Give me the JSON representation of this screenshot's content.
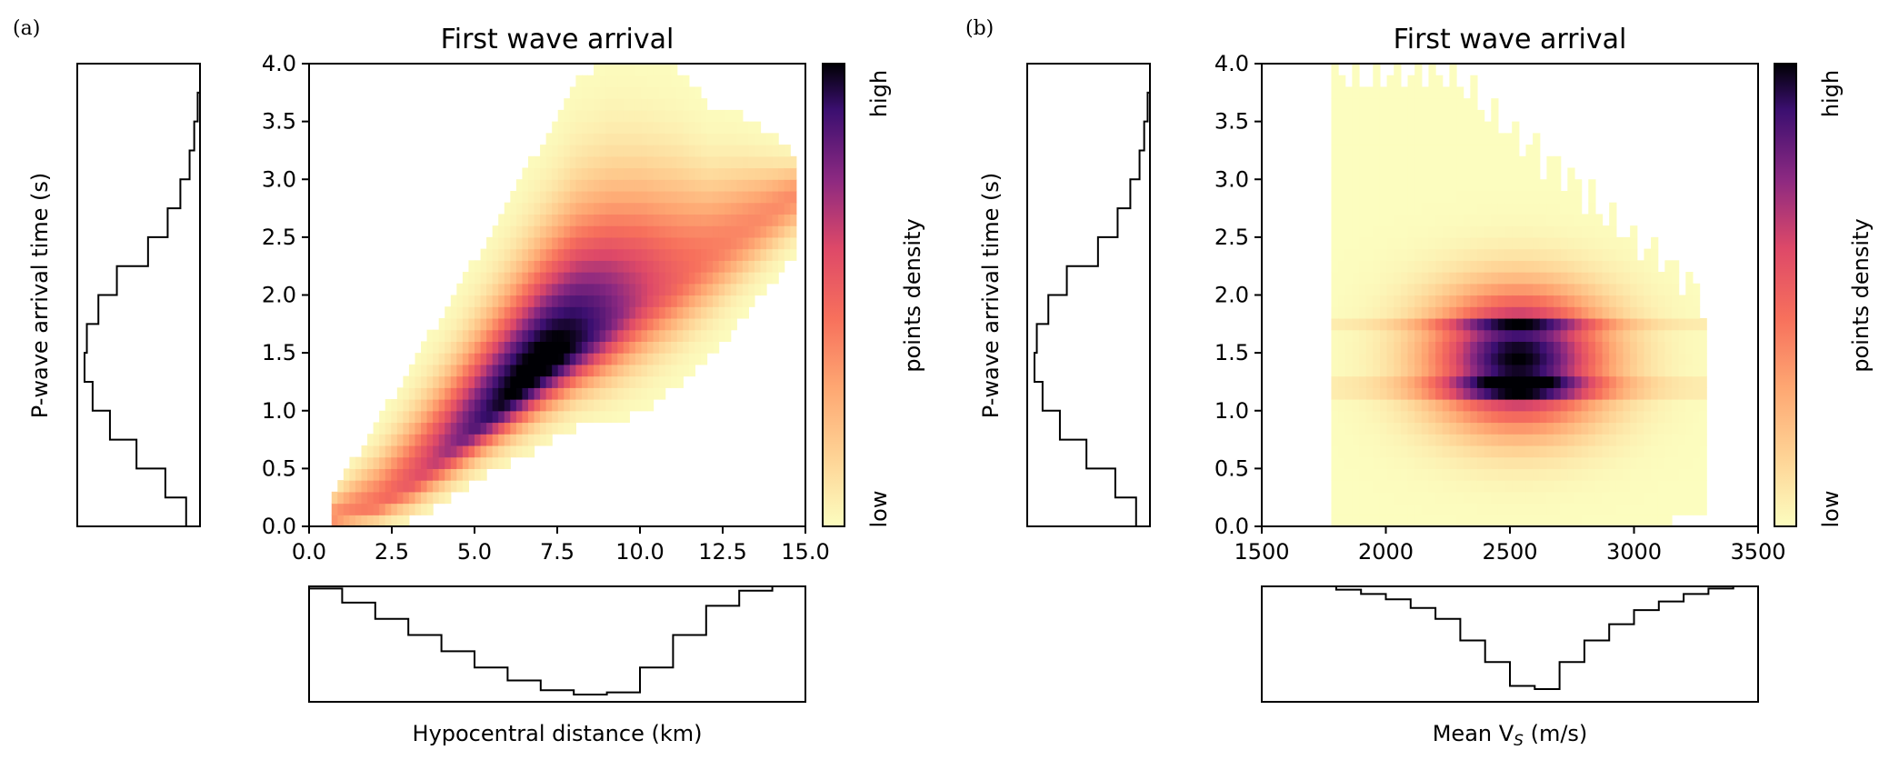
{
  "panels": [
    {
      "label": "(a)",
      "title": "First wave arrival",
      "xlabel": "Hypocentral distance (km)",
      "xlabel_sub": "",
      "xlabel_suffix": "",
      "ylabel": "P-wave arrival time (s)",
      "colorbar": {
        "label": "points density",
        "low": "low",
        "high": "high"
      }
    },
    {
      "label": "(b)",
      "title": "First wave arrival",
      "xlabel": "Mean V",
      "xlabel_sub": "S",
      "xlabel_suffix": " (m/s)",
      "ylabel": "P-wave arrival time (s)",
      "colorbar": {
        "label": "points density",
        "low": "low",
        "high": "high"
      }
    }
  ],
  "chart_data": [
    {
      "type": "heatmap",
      "title": "First wave arrival",
      "xlabel": "Hypocentral distance (km)",
      "ylabel": "P-wave arrival time (s)",
      "xlim": [
        0,
        15
      ],
      "ylim": [
        0,
        4
      ],
      "x_ticks": [
        0,
        2.5,
        5,
        7.5,
        10,
        12.5,
        15
      ],
      "x_tick_labels": [
        "0.0",
        "2.5",
        "5.0",
        "7.5",
        "10.0",
        "12.5",
        "15.0"
      ],
      "y_ticks": [
        0,
        0.5,
        1,
        1.5,
        2,
        2.5,
        3,
        3.5,
        4
      ],
      "y_tick_labels": [
        "0.0",
        "0.5",
        "1.0",
        "1.5",
        "2.0",
        "2.5",
        "3.0",
        "3.5",
        "4.0"
      ],
      "colormap": "magma_r",
      "density_ridge": {
        "x": [
          0.6,
          2,
          3,
          4,
          5,
          6,
          7,
          8,
          9,
          10,
          11,
          12,
          13,
          14.5
        ],
        "y_center": [
          0.02,
          0.15,
          0.35,
          0.6,
          0.85,
          1.1,
          1.35,
          1.55,
          1.75,
          1.95,
          2.1,
          2.3,
          2.5,
          2.8
        ],
        "y_min": [
          0.0,
          0.0,
          0.05,
          0.2,
          0.4,
          0.55,
          0.7,
          0.85,
          0.9,
          1.0,
          1.2,
          1.45,
          1.8,
          2.3
        ],
        "y_max": [
          0.25,
          0.85,
          1.35,
          1.8,
          2.3,
          2.8,
          3.3,
          3.8,
          4.0,
          4.0,
          3.9,
          3.6,
          3.5,
          3.2
        ],
        "peak_x": 6.8,
        "peak_y": 1.3
      },
      "marginal_y_histogram": {
        "bins": [
          0.0,
          0.25,
          0.5,
          0.75,
          1.0,
          1.25,
          1.5,
          1.75,
          2.0,
          2.25,
          2.5,
          2.75,
          3.0,
          3.25,
          3.5,
          3.75,
          4.0
        ],
        "relative_counts": [
          0.12,
          0.3,
          0.55,
          0.78,
          0.93,
          1.0,
          0.98,
          0.88,
          0.72,
          0.45,
          0.28,
          0.17,
          0.09,
          0.05,
          0.02,
          0.0
        ]
      },
      "marginal_x_histogram": {
        "bins": [
          0,
          1,
          2,
          3,
          4,
          5,
          6,
          7,
          8,
          9,
          10,
          11,
          12,
          13,
          14,
          15
        ],
        "relative_counts": [
          0.02,
          0.15,
          0.3,
          0.45,
          0.6,
          0.75,
          0.87,
          0.96,
          1.0,
          0.98,
          0.75,
          0.45,
          0.18,
          0.04,
          0.0
        ]
      }
    },
    {
      "type": "heatmap",
      "title": "First wave arrival",
      "xlabel": "Mean V_S (m/s)",
      "ylabel": "P-wave arrival time (s)",
      "xlim": [
        1500,
        3500
      ],
      "ylim": [
        0,
        4
      ],
      "x_ticks": [
        1500,
        2000,
        2500,
        3000,
        3500
      ],
      "x_tick_labels": [
        "1500",
        "2000",
        "2500",
        "3000",
        "3500"
      ],
      "y_ticks": [
        0,
        0.5,
        1,
        1.5,
        2,
        2.5,
        3,
        3.5,
        4
      ],
      "y_tick_labels": [
        "0.0",
        "0.5",
        "1.0",
        "1.5",
        "2.0",
        "2.5",
        "3.0",
        "3.5",
        "4.0"
      ],
      "colormap": "magma_r",
      "density_blob": {
        "x_range": [
          1780,
          3280
        ],
        "y_range": [
          0,
          4
        ],
        "peak_x": 2520,
        "peak_y": 1.4
      },
      "marginal_y_histogram": {
        "bins": [
          0.0,
          0.25,
          0.5,
          0.75,
          1.0,
          1.25,
          1.5,
          1.75,
          2.0,
          2.25,
          2.5,
          2.75,
          3.0,
          3.25,
          3.5,
          3.75,
          4.0
        ],
        "relative_counts": [
          0.12,
          0.3,
          0.55,
          0.78,
          0.93,
          1.0,
          0.98,
          0.88,
          0.72,
          0.45,
          0.28,
          0.17,
          0.09,
          0.05,
          0.02,
          0.0
        ]
      },
      "marginal_x_histogram": {
        "bins": [
          1500,
          1600,
          1700,
          1800,
          1900,
          2000,
          2100,
          2200,
          2300,
          2400,
          2500,
          2600,
          2700,
          2800,
          2900,
          3000,
          3100,
          3200,
          3300,
          3400,
          3500
        ],
        "relative_counts": [
          0.0,
          0.0,
          0.0,
          0.03,
          0.07,
          0.12,
          0.2,
          0.3,
          0.5,
          0.7,
          0.92,
          0.95,
          0.7,
          0.5,
          0.35,
          0.22,
          0.14,
          0.07,
          0.02,
          0.0
        ]
      }
    }
  ]
}
